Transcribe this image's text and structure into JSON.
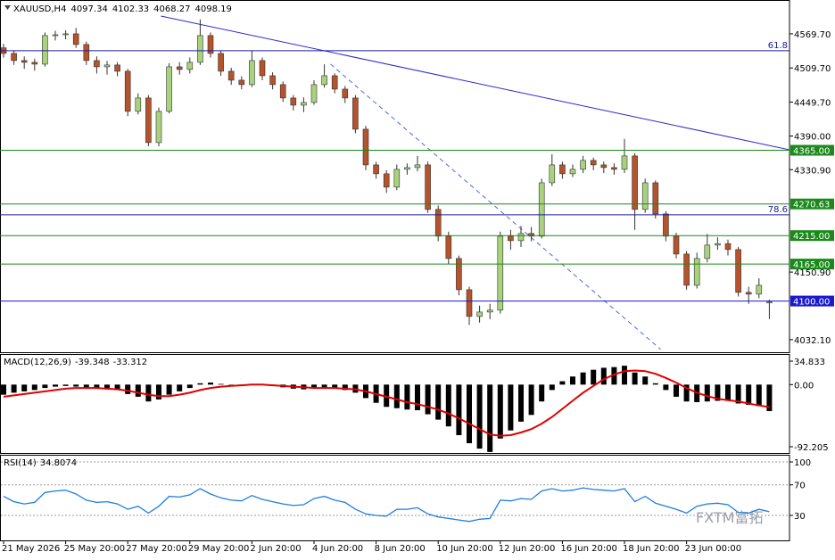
{
  "watermark": "FXTM富拓",
  "chart_data": [
    {
      "type": "candlestick",
      "symbol": "XAUUSD,H4",
      "categories": [
        "21 May 2026",
        null,
        null,
        null,
        null,
        null,
        "25 May 20:00",
        null,
        null,
        null,
        null,
        null,
        "27 May 20:00",
        null,
        null,
        null,
        null,
        null,
        "29 May 20:00",
        null,
        null,
        null,
        null,
        null,
        "2 Jun 20:00",
        null,
        null,
        null,
        null,
        null,
        "4 Jun 20:00",
        null,
        null,
        null,
        null,
        null,
        "8 Jun 20:00",
        null,
        null,
        null,
        null,
        null,
        "10 Jun 20:00",
        null,
        null,
        null,
        null,
        null,
        "12 Jun 20:00",
        null,
        null,
        null,
        null,
        null,
        "16 Jun 20:00",
        null,
        null,
        null,
        null,
        null,
        "18 Jun 20:00",
        null,
        null,
        null,
        null,
        null,
        "23 Jun 00:00",
        null,
        null,
        null,
        null,
        null,
        null,
        null,
        null
      ],
      "open": [
        4545.0,
        4535.2,
        4522.7,
        4519.6,
        4516.4,
        4566.6,
        4568.0,
        4569.7,
        4550.9,
        4522.7,
        4511.7,
        4514.9,
        4503.9,
        4433.4,
        4456.9,
        4378.5,
        4433.4,
        4511.7,
        4507.0,
        4519.6,
        4566.6,
        4535.2,
        4503.9,
        4488.2,
        4480.4,
        4522.7,
        4496.0,
        4480.4,
        4456.9,
        4444.3,
        4449.0,
        4480.4,
        4496.0,
        4472.5,
        4456.9,
        4402.0,
        4339.3,
        4323.7,
        4300.2,
        4331.5,
        4334.6,
        4339.3,
        4261.0,
        4214.0,
        4174.8,
        4119.9,
        4072.9,
        4080.7,
        4083.9,
        4214.0,
        4206.1,
        4218.7,
        4214.0,
        4307.9,
        4339.3,
        4323.7,
        4331.5,
        4347.2,
        4339.3,
        4334.6,
        4331.5,
        4355.0,
        4261.0,
        4307.9,
        4253.1,
        4214.0,
        4182.6,
        4127.7,
        4174.8,
        4198.3,
        4201.0,
        4190.5,
        4115.2,
        4112.1,
        4097.34
      ],
      "high": [
        4552.0,
        4540.0,
        4530.0,
        4526.0,
        4572.0,
        4575.0,
        4576.0,
        4580.0,
        4556.0,
        4530.0,
        4522.0,
        4520.0,
        4508.0,
        4465.0,
        4462.0,
        4440.0,
        4518.0,
        4520.0,
        4528.0,
        4595.0,
        4572.0,
        4540.0,
        4510.0,
        4495.0,
        4540.0,
        4528.0,
        4502.0,
        4486.0,
        4462.0,
        4458.0,
        4488.0,
        4516.0,
        4500.0,
        4478.0,
        4462.0,
        4408.0,
        4345.0,
        4330.0,
        4340.0,
        4342.0,
        4355.0,
        4345.0,
        4268.0,
        4222.0,
        4180.0,
        4125.0,
        4092.0,
        4095.0,
        4222.0,
        4225.0,
        4232.0,
        4230.0,
        4315.0,
        4358.0,
        4345.0,
        4340.0,
        4355.0,
        4352.0,
        4345.0,
        4342.0,
        4385.0,
        4360.0,
        4315.0,
        4312.0,
        4258.0,
        4220.0,
        4188.0,
        4185.0,
        4218.0,
        4212.0,
        4208.0,
        4195.0,
        4125.0,
        4140.0,
        4102.33
      ],
      "low": [
        4528.0,
        4515.0,
        4508.0,
        4505.0,
        4512.0,
        4558.0,
        4560.0,
        4545.0,
        4515.0,
        4500.0,
        4498.0,
        4495.0,
        4425.0,
        4428.0,
        4372.0,
        4372.0,
        4430.0,
        4498.0,
        4500.0,
        4515.0,
        4528.0,
        4496.0,
        4480.0,
        4472.0,
        4476.0,
        4488.0,
        4472.0,
        4450.0,
        4435.0,
        4432.0,
        4445.0,
        4475.0,
        4465.0,
        4448.0,
        4395.0,
        4330.0,
        4315.0,
        4290.0,
        4295.0,
        4322.0,
        4328.0,
        4255.0,
        4205.0,
        4165.0,
        4110.0,
        4058.0,
        4062.0,
        4068.0,
        4078.0,
        4190.0,
        4195.0,
        4205.0,
        4210.0,
        4302.0,
        4315.0,
        4318.0,
        4325.0,
        4330.0,
        4325.0,
        4322.0,
        4325.0,
        4225.0,
        4255.0,
        4245.0,
        4205.0,
        4175.0,
        4120.0,
        4122.0,
        4168.0,
        4190.0,
        4180.0,
        4108.0,
        4095.0,
        4105.0,
        4068.27
      ],
      "close": [
        4535.2,
        4522.7,
        4519.6,
        4516.4,
        4566.6,
        4568.0,
        4569.7,
        4550.9,
        4522.7,
        4511.7,
        4514.9,
        4503.9,
        4433.4,
        4456.9,
        4378.5,
        4433.4,
        4511.7,
        4507.0,
        4519.6,
        4566.6,
        4535.2,
        4503.9,
        4488.2,
        4480.4,
        4522.7,
        4496.0,
        4480.4,
        4456.9,
        4444.3,
        4449.0,
        4480.4,
        4496.0,
        4472.5,
        4456.9,
        4402.0,
        4339.3,
        4323.7,
        4300.2,
        4331.5,
        4334.6,
        4339.3,
        4261.0,
        4214.0,
        4174.8,
        4119.9,
        4072.9,
        4080.7,
        4083.9,
        4214.0,
        4206.1,
        4218.7,
        4214.0,
        4307.9,
        4339.3,
        4323.7,
        4331.5,
        4347.2,
        4339.3,
        4334.6,
        4331.5,
        4355.0,
        4261.0,
        4307.9,
        4253.1,
        4214.0,
        4182.6,
        4127.7,
        4174.8,
        4198.3,
        4201.0,
        4190.5,
        4115.2,
        4112.1,
        4127.7,
        4098.19
      ],
      "up_color": "#a8d37c",
      "down_color": "#b4532c",
      "ylim": [
        4010,
        4626
      ],
      "yticks": [
        {
          "value": 4569.7,
          "label": "4569.70"
        },
        {
          "value": 4509.7,
          "label": "4509.70"
        },
        {
          "value": 4449.7,
          "label": "4449.70"
        },
        {
          "value": 4390,
          "label": "4390.00"
        },
        {
          "value": 4330.9,
          "label": "4330.90"
        },
        {
          "value": 4150.9,
          "label": "4150.90"
        },
        {
          "value": 4032.1,
          "label": "4032.10"
        }
      ],
      "levels": [
        {
          "value": 4539.9,
          "label": "61.8",
          "color": "#1a1a9a",
          "label_style": "tag"
        },
        {
          "value": 4365,
          "label": "4365.00",
          "color": "#1a8a1a",
          "label_style": "box"
        },
        {
          "value": 4270.63,
          "label": "4270.63",
          "color": "#1a8a1a",
          "label_style": "box"
        },
        {
          "value": 4251.5,
          "label": "78.6",
          "color": "#1a1a9a",
          "label_style": "tag"
        },
        {
          "value": 4215,
          "label": "4215.00",
          "color": "#1a8a1a",
          "label_style": "box"
        },
        {
          "value": 4165,
          "label": "4165.00",
          "color": "#1a8a1a",
          "label_style": "box"
        },
        {
          "value": 4100,
          "label": "4100.00",
          "color": "#1a1acc",
          "label_style": "box"
        }
      ],
      "trendlines": [
        {
          "color": "#2a2acc",
          "dashed": false,
          "points": [
            [
              15.2,
              4601.0
            ],
            [
              76,
              4365.6
            ]
          ]
        },
        {
          "color": "#4a6adc",
          "dashed": true,
          "points": [
            [
              31.6,
              4516.4
            ],
            [
              63.5,
              4014.9
            ]
          ]
        }
      ]
    },
    {
      "type": "macd",
      "title": "MACD(12,26,9)",
      "histogram": {
        "color": "#000000",
        "values": [
          -15,
          -12,
          -10,
          -8,
          -5,
          -3,
          -2,
          -3,
          -5,
          -6,
          -7,
          -8,
          -14,
          -18,
          -25,
          -22,
          -15,
          -10,
          -5,
          2,
          3,
          1,
          0,
          -1,
          1,
          0,
          -2,
          -4,
          -6,
          -7,
          -6,
          -5,
          -6,
          -8,
          -12,
          -20,
          -27,
          -33,
          -35,
          -37,
          -38,
          -44,
          -52,
          -62,
          -75,
          -87,
          -95,
          -100,
          -80,
          -68,
          -55,
          -45,
          -25,
          -8,
          5,
          12,
          18,
          22,
          25,
          26,
          28,
          18,
          12,
          2,
          -8,
          -18,
          -25,
          -26,
          -25,
          -24,
          -24,
          -28,
          -30,
          -32,
          -39.348
        ]
      },
      "signal": {
        "color": "#e00000",
        "values": [
          -18,
          -16,
          -14,
          -12,
          -10,
          -8,
          -6,
          -5,
          -5,
          -5,
          -6,
          -7,
          -9,
          -12,
          -15,
          -17,
          -17,
          -15,
          -12,
          -8,
          -5,
          -3,
          -2,
          -1,
          0,
          0,
          -1,
          -2,
          -3,
          -4,
          -5,
          -5,
          -5,
          -6,
          -7,
          -10,
          -14,
          -18,
          -22,
          -26,
          -29,
          -33,
          -37,
          -43,
          -50,
          -58,
          -66,
          -74,
          -76,
          -75,
          -71,
          -66,
          -58,
          -48,
          -36,
          -24,
          -12,
          -2,
          8,
          15,
          20,
          21,
          20,
          16,
          10,
          3,
          -5,
          -12,
          -17,
          -21,
          -23,
          -25,
          -28,
          -31,
          -33.312
        ]
      },
      "ylim": [
        -101.5,
        44.1
      ],
      "yticks": [
        34.833,
        {
          "value": 0,
          "label": "0.00"
        },
        -92.205
      ]
    },
    {
      "type": "line",
      "title": "RSI(14)",
      "color": "#1e7ee0",
      "values": [
        55,
        48,
        45,
        47,
        60,
        62,
        63,
        58,
        50,
        47,
        48,
        45,
        38,
        42,
        33,
        42,
        55,
        54,
        57,
        65,
        58,
        53,
        50,
        49,
        56,
        51,
        48,
        45,
        43,
        44,
        52,
        55,
        50,
        47,
        38,
        32,
        30,
        29,
        38,
        38,
        40,
        32,
        28,
        26,
        24,
        22,
        25,
        26,
        50,
        49,
        52,
        51,
        62,
        65,
        62,
        63,
        66,
        64,
        63,
        62,
        65,
        48,
        55,
        46,
        42,
        38,
        33,
        42,
        45,
        46,
        44,
        34,
        33,
        38,
        34.8074
      ],
      "ylim": [
        -2.7,
        108.2
      ],
      "yticks": [
        100,
        70,
        30
      ]
    }
  ]
}
